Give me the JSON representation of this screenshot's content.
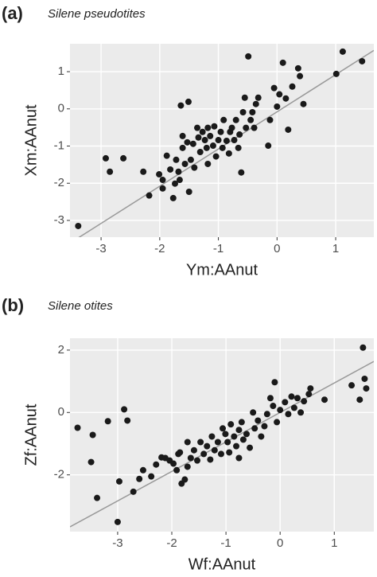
{
  "chart_data": [
    {
      "type": "scatter",
      "label": "(a)",
      "title": "Silene pseudotites",
      "x_label": "Ym:AAnut",
      "y_label": "Xm:AAnut",
      "color": "#1a1a1a",
      "background": "#ebebeb",
      "grid": true,
      "xlim": [
        -3.53,
        1.65
      ],
      "ylim": [
        -3.45,
        1.75
      ],
      "xticks": [
        -3,
        -2,
        -1,
        0,
        1
      ],
      "yticks": [
        -3,
        -2,
        -1,
        0,
        1
      ],
      "fit": {
        "slope": 1.0,
        "intercept": -0.08,
        "color": "#999999"
      },
      "x": [
        -3.39,
        -2.92,
        -2.85,
        -2.62,
        -2.28,
        -2.18,
        -2.01,
        -1.95,
        -1.95,
        -1.82,
        -1.77,
        -1.74,
        -1.72,
        -1.68,
        -1.61,
        -1.57,
        -1.53,
        -1.5,
        -1.47,
        -1.64,
        -1.51,
        -1.43,
        -1.41,
        -1.36,
        -1.31,
        -1.27,
        -1.23,
        -1.2,
        -1.18,
        -1.14,
        -1.09,
        -1.07,
        -1.04,
        -1.0,
        -0.96,
        -0.93,
        -0.91,
        -0.86,
        -0.82,
        -0.8,
        -0.77,
        -0.73,
        -0.7,
        -0.66,
        -0.64,
        -0.61,
        -0.58,
        -0.55,
        -0.53,
        -0.49,
        -0.45,
        -0.42,
        -0.39,
        -0.36,
        -0.32,
        -0.15,
        -0.12,
        -0.05,
        0.0,
        0.04,
        0.1,
        0.15,
        0.19,
        0.26,
        0.36,
        0.39,
        0.45,
        1.01,
        1.12,
        1.45,
        -1.18,
        -1.61,
        -1.88,
        -1.34,
        -1.66
      ],
      "y": [
        -3.15,
        -1.33,
        -1.69,
        -1.33,
        -1.69,
        -2.33,
        -1.76,
        -2.14,
        -1.91,
        -1.63,
        -2.4,
        -2.01,
        -1.37,
        -1.69,
        -1.05,
        -1.48,
        -0.9,
        -2.23,
        -1.37,
        0.09,
        0.19,
        -0.94,
        -1.58,
        -0.51,
        -1.16,
        -0.62,
        -0.84,
        -1.05,
        -1.48,
        -0.73,
        -0.99,
        -0.47,
        -1.28,
        -0.84,
        -0.62,
        -1.05,
        -0.3,
        -0.86,
        -1.2,
        -0.62,
        -0.51,
        -0.84,
        -0.3,
        -1.05,
        -0.69,
        -1.71,
        -0.09,
        0.3,
        -0.51,
        1.41,
        -0.3,
        -0.09,
        -0.51,
        0.13,
        0.3,
        -0.99,
        -0.3,
        0.56,
        0.06,
        0.39,
        1.24,
        0.28,
        -0.56,
        0.6,
        1.09,
        0.88,
        0.13,
        0.94,
        1.54,
        1.28,
        -0.51,
        -0.73,
        -1.26,
        -0.77,
        -1.91
      ]
    },
    {
      "type": "scatter",
      "label": "(b)",
      "title": "Silene otites",
      "x_label": "Wf:AAnut",
      "y_label": "Zf:AAnut",
      "color": "#1a1a1a",
      "background": "#ebebeb",
      "grid": true,
      "xlim": [
        -3.88,
        1.73
      ],
      "ylim": [
        -3.82,
        2.38
      ],
      "xticks": [
        -3,
        -2,
        -1,
        0,
        1
      ],
      "yticks": [
        -2,
        0,
        2
      ],
      "fit": {
        "slope": 0.945,
        "intercept": 0.0,
        "color": "#999999"
      },
      "x": [
        -3.74,
        -3.46,
        -3.49,
        -3.38,
        -3.18,
        -3.0,
        -2.97,
        -2.88,
        -2.82,
        -2.71,
        -2.6,
        -2.53,
        -2.38,
        -2.29,
        -2.19,
        -2.12,
        -2.04,
        -1.97,
        -1.91,
        -1.88,
        -1.82,
        -1.76,
        -1.71,
        -1.65,
        -1.59,
        -1.53,
        -1.47,
        -1.41,
        -1.35,
        -1.29,
        -1.26,
        -1.21,
        -1.15,
        -1.09,
        -1.06,
        -1.01,
        -0.97,
        -0.94,
        -0.91,
        -0.85,
        -0.81,
        -0.76,
        -0.71,
        -0.68,
        -0.62,
        -0.56,
        -0.5,
        -0.47,
        -0.41,
        -0.35,
        -0.29,
        -0.24,
        -0.18,
        -0.13,
        -0.1,
        -0.06,
        0.0,
        0.09,
        0.15,
        0.21,
        0.26,
        0.32,
        0.38,
        0.44,
        0.53,
        0.56,
        0.82,
        1.32,
        1.47,
        1.53,
        1.56,
        1.59,
        -1.71,
        -1.85,
        -0.76
      ],
      "y": [
        -0.49,
        -0.72,
        -1.59,
        -2.74,
        -0.28,
        -3.51,
        -2.21,
        0.1,
        -0.26,
        -2.54,
        -2.13,
        -1.85,
        -2.05,
        -1.67,
        -1.44,
        -1.46,
        -1.54,
        -1.64,
        -1.85,
        -1.33,
        -2.28,
        -2.15,
        -1.74,
        -1.46,
        -1.21,
        -1.54,
        -0.95,
        -1.33,
        -1.08,
        -1.51,
        -0.77,
        -1.21,
        -0.95,
        -1.33,
        -0.51,
        -0.69,
        -0.95,
        -1.28,
        -0.38,
        -0.77,
        -1.08,
        -0.56,
        -0.31,
        -0.87,
        -0.69,
        -1.13,
        0.0,
        -0.51,
        -0.26,
        -0.77,
        -0.44,
        -0.05,
        0.46,
        0.21,
        0.97,
        -0.31,
        0.08,
        0.33,
        -0.05,
        0.51,
        0.15,
        0.46,
        0.0,
        0.36,
        0.59,
        0.77,
        0.41,
        0.87,
        0.41,
        2.08,
        1.08,
        0.77,
        -0.95,
        -1.28,
        -1.46
      ]
    }
  ]
}
